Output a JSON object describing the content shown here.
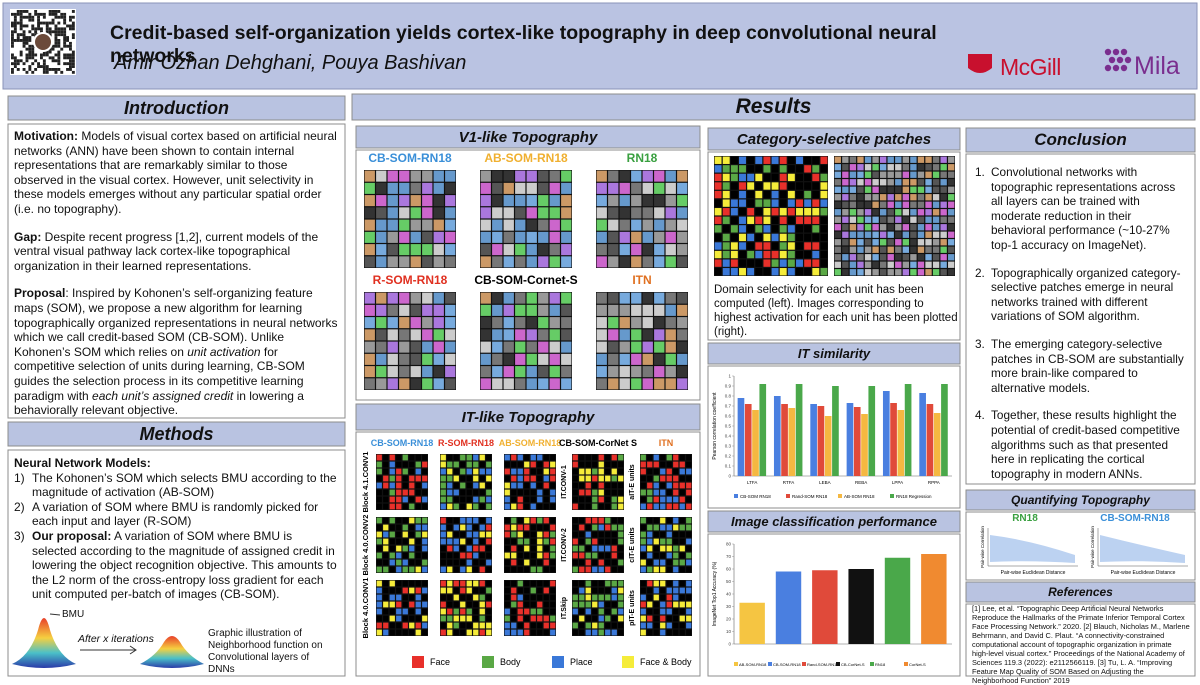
{
  "header": {
    "title": "Credit-based self-organization yields cortex-like topography in deep convolutional neural networks",
    "authors": "Amir Ozhan Dehghani, Pouya Bashivan",
    "logos": [
      "McGill",
      "Mila"
    ]
  },
  "introduction": {
    "heading": "Introduction",
    "paragraphs": [
      [
        {
          "text": "Motivation:",
          "style": "bold"
        },
        {
          "text": " Models of visual cortex based on artificial neural networks (ANN) have been shown to contain internal representations that are remarkably similar to those observed in the visual cortex. However, unit selectivity in these models emerges without any particular spatial order (i.e. no topography)."
        }
      ],
      [
        {
          "text": "Gap:",
          "style": "bold"
        },
        {
          "text": " Despite recent progress [1,2], current models of the ventral visual pathway lack cortex-like topographical organization in their learned representations."
        }
      ],
      [
        {
          "text": "Proposal",
          "style": "bold"
        },
        {
          "text": ": Inspired by Kohonen’s self-organizing feature maps (SOM), we propose a new algorithm for learning topographically organized representations in neural networks which we call credit-based SOM (CB-SOM). Unlike Kohonen’s SOM which relies on "
        },
        {
          "text": "unit activation",
          "style": "italic"
        },
        {
          "text": " for competitive selection of units during learning, CB-SOM guides the selection process in its competitive learning paradigm with "
        },
        {
          "text": "each unit’s assigned credit",
          "style": "italic"
        },
        {
          "text": " in lowering a behaviorally relevant objective."
        }
      ]
    ]
  },
  "methods": {
    "heading": "Methods",
    "subheading": "Neural Network Models:",
    "items": [
      {
        "marker": "1)",
        "runs": [
          {
            "text": "The Kohonen’s SOM which selects BMU according to the magnitude of activation (AB-SOM)"
          }
        ]
      },
      {
        "marker": "2)",
        "runs": [
          {
            "text": "A variation of SOM where BMU is randomly picked for each input and layer (R-SOM)"
          }
        ]
      },
      {
        "marker": "3)",
        "runs": [
          {
            "text": "Our proposal:",
            "style": "bold"
          },
          {
            "text": " A variation of SOM where BMU is selected according to the magnitude of assigned credit in lowering the object recognition objective. This amounts to the L2 norm of the cross-entropy loss gradient for each unit computed per-batch of images (CB-SOM)."
          }
        ]
      }
    ],
    "figure": {
      "bmu": "BMU",
      "arrow": "After x iterations",
      "caption": "Graphic illustration of Neighborhood function on Convolutional layers of DNNs"
    }
  },
  "results": {
    "heading": "Results",
    "v1": {
      "heading": "V1-like Topography",
      "models": [
        {
          "name": "CB-SOM-RN18",
          "color": "#3a8fd8"
        },
        {
          "name": "AB-SOM-RN18",
          "color": "#f0b030"
        },
        {
          "name": "RN18",
          "color": "#3aa040"
        },
        {
          "name": "R-SOM-RN18",
          "color": "#e03020"
        },
        {
          "name": "CB-SOM-Cornet-S",
          "color": "#000000"
        },
        {
          "name": "ITN",
          "color": "#e07020"
        }
      ]
    },
    "it": {
      "heading": "IT-like Topography",
      "columns": [
        {
          "name": "CB-SOM-RN18",
          "color": "#3a8fd8"
        },
        {
          "name": "R-SOM-RN18",
          "color": "#e03020"
        },
        {
          "name": "AB-SOM-RN18",
          "color": "#f0b030"
        },
        {
          "name": "CB-SOM-CorNet S",
          "color": "#000000"
        },
        {
          "name": "ITN",
          "color": "#e07020"
        }
      ],
      "rows": [
        "Block 4.1.CONV1",
        "Block 4.0.CONV2",
        "Block 4.0.CONV1"
      ],
      "cornet_rows": [
        "IT.CONV-1",
        "IT.CONV-2",
        "IT.Skip"
      ],
      "itn_rows": [
        "aIT-E units",
        "cIT-E units",
        "pIT-E units"
      ],
      "legend": [
        {
          "name": "Face",
          "color": "#e8302a"
        },
        {
          "name": "Body",
          "color": "#5aa845"
        },
        {
          "name": "Place",
          "color": "#3a78d8"
        },
        {
          "name": "Face & Body",
          "color": "#f5ec3a"
        }
      ]
    },
    "category": {
      "heading": "Category-selective patches",
      "caption": "Domain selectivity for each unit has been computed (left). Images corresponding to highest activation for each unit has been plotted (right)."
    },
    "it_similarity_heading": "IT similarity",
    "classification_heading": "Image classification performance"
  },
  "chart_data": [
    {
      "type": "bar",
      "ylabel": "Pearson correlation coefficient",
      "categories": [
        "LTFA",
        "RTFA",
        "LEBA",
        "REBA",
        "LPPA",
        "RPPA"
      ],
      "series": [
        {
          "name": "CB-SOM RN18",
          "color": "#4a7fe0",
          "values": [
            0.78,
            0.8,
            0.72,
            0.73,
            0.85,
            0.83
          ]
        },
        {
          "name": "Rand-SOM RN18",
          "color": "#e04a3a",
          "values": [
            0.72,
            0.72,
            0.7,
            0.69,
            0.73,
            0.72
          ]
        },
        {
          "name": "AB-SOM RN18",
          "color": "#f5b841",
          "values": [
            0.66,
            0.68,
            0.6,
            0.62,
            0.66,
            0.63
          ]
        },
        {
          "name": "RN18 Regression",
          "color": "#4aa84a",
          "values": [
            0.92,
            0.92,
            0.9,
            0.9,
            0.92,
            0.92
          ]
        }
      ],
      "ylim": [
        0,
        1
      ],
      "yticks": [
        0,
        0.1,
        0.2,
        0.3,
        0.4,
        0.5,
        0.6,
        0.7,
        0.8,
        0.9,
        1
      ]
    },
    {
      "type": "bar",
      "ylabel": "ImageNet Top1 Accuracy (%)",
      "categories": [
        "AB-SOM-RN18",
        "CB-SOM-RN18",
        "Rand-SOM-RN18",
        "CB-CorNet-S",
        "RN18",
        "CorNet-S"
      ],
      "values": [
        33,
        58,
        59,
        60,
        69,
        72
      ],
      "colors": [
        "#f5c542",
        "#4a7fe0",
        "#e04a3a",
        "#111111",
        "#4aa84a",
        "#f08a30"
      ],
      "ylim": [
        0,
        80
      ],
      "yticks": [
        0,
        10,
        20,
        30,
        40,
        50,
        60,
        70,
        80
      ]
    }
  ],
  "conclusion": {
    "heading": "Conclusion",
    "items": [
      {
        "marker": "1.",
        "text": "Convolutional networks with topographic representations across all layers can be trained with moderate reduction in their behavioral performance (~10-27% top-1 accuracy on ImageNet)."
      },
      {
        "marker": "2.",
        "text": "Topographically organized category-selective patches emerge in neural networks trained with different variations of SOM algorithm."
      },
      {
        "marker": "3.",
        "text": "The emerging category-selective patches in CB-SOM are substantially more brain-like compared to alternative models."
      },
      {
        "marker": "4.",
        "text": "Together, these results highlight the potential of credit-based competitive algorithms such as that presented here in replicating the cortical topography in modern ANNs."
      }
    ]
  },
  "quantifying": {
    "heading": "Quantifying Topography",
    "panels": [
      {
        "name": "RN18",
        "color": "#3aa040"
      },
      {
        "name": "CB-SOM-RN18",
        "color": "#3a8fd8"
      }
    ],
    "xlabel": "Pair-wise Euclidean Distance",
    "ylabel": "Pair-wise Correlation"
  },
  "references": {
    "heading": "References",
    "text": "[1] Lee, et al. “Topographic Deep Artificial Neural Networks Reproduce the Hallmarks of the Primate Inferior Temporal Cortex Face Processing Network.” 2020. [2] Blauch, Nicholas M., Marlene Behrmann, and David C. Plaut. “A connectivity-constrained computational account of topographic organization in primate high-level visual cortex.” Proceedings of the National Academy of Sciences 119.3 (2022): e2112566119. [3] Tu, L. A. “Improving Feature Map Quality of SOM Based on Adjusting the Neighborhood Function” 2019"
  }
}
